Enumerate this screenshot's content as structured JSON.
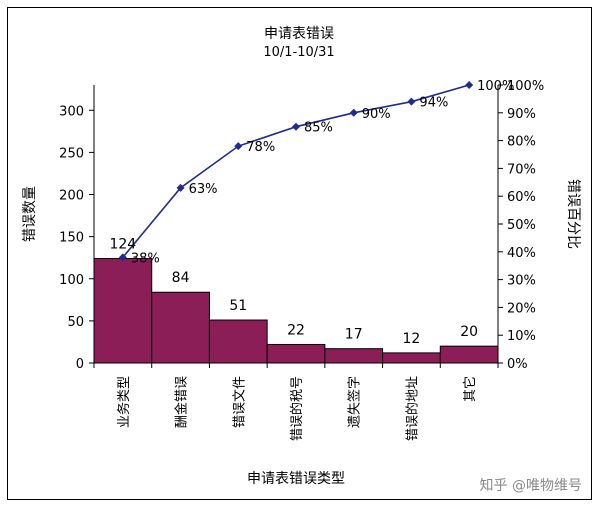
{
  "chart_data": {
    "type": "bar",
    "title": "申请表错误",
    "subtitle": "10/1-10/31",
    "xlabel": "申请表错误类型",
    "ylabel": "错误数量",
    "y2label": "错误百分比",
    "categories": [
      "业务类型",
      "酬金错误",
      "错误文件",
      "错误的税号",
      "遗失签字",
      "错误的地址",
      "其它"
    ],
    "bar_series": {
      "values": [
        124,
        84,
        51,
        22,
        17,
        12,
        20
      ],
      "color": "#8b1e57"
    },
    "line_series": {
      "values": [
        38,
        63,
        78,
        85,
        90,
        94,
        100
      ],
      "labels": [
        "38%",
        "63%",
        "78%",
        "85%",
        "90%",
        "94%",
        "100%"
      ],
      "color": "#1f2b8f"
    },
    "ylim": [
      0,
      330
    ],
    "yticks": [
      0,
      50,
      100,
      150,
      200,
      250,
      300
    ],
    "y2lim": [
      0,
      100
    ],
    "y2ticks": [
      "0%",
      "10%",
      "20%",
      "30%",
      "40%",
      "50%",
      "60%",
      "70%",
      "80%",
      "90%",
      "100%"
    ],
    "grid": false
  },
  "watermark": "知乎 @唯物维号"
}
